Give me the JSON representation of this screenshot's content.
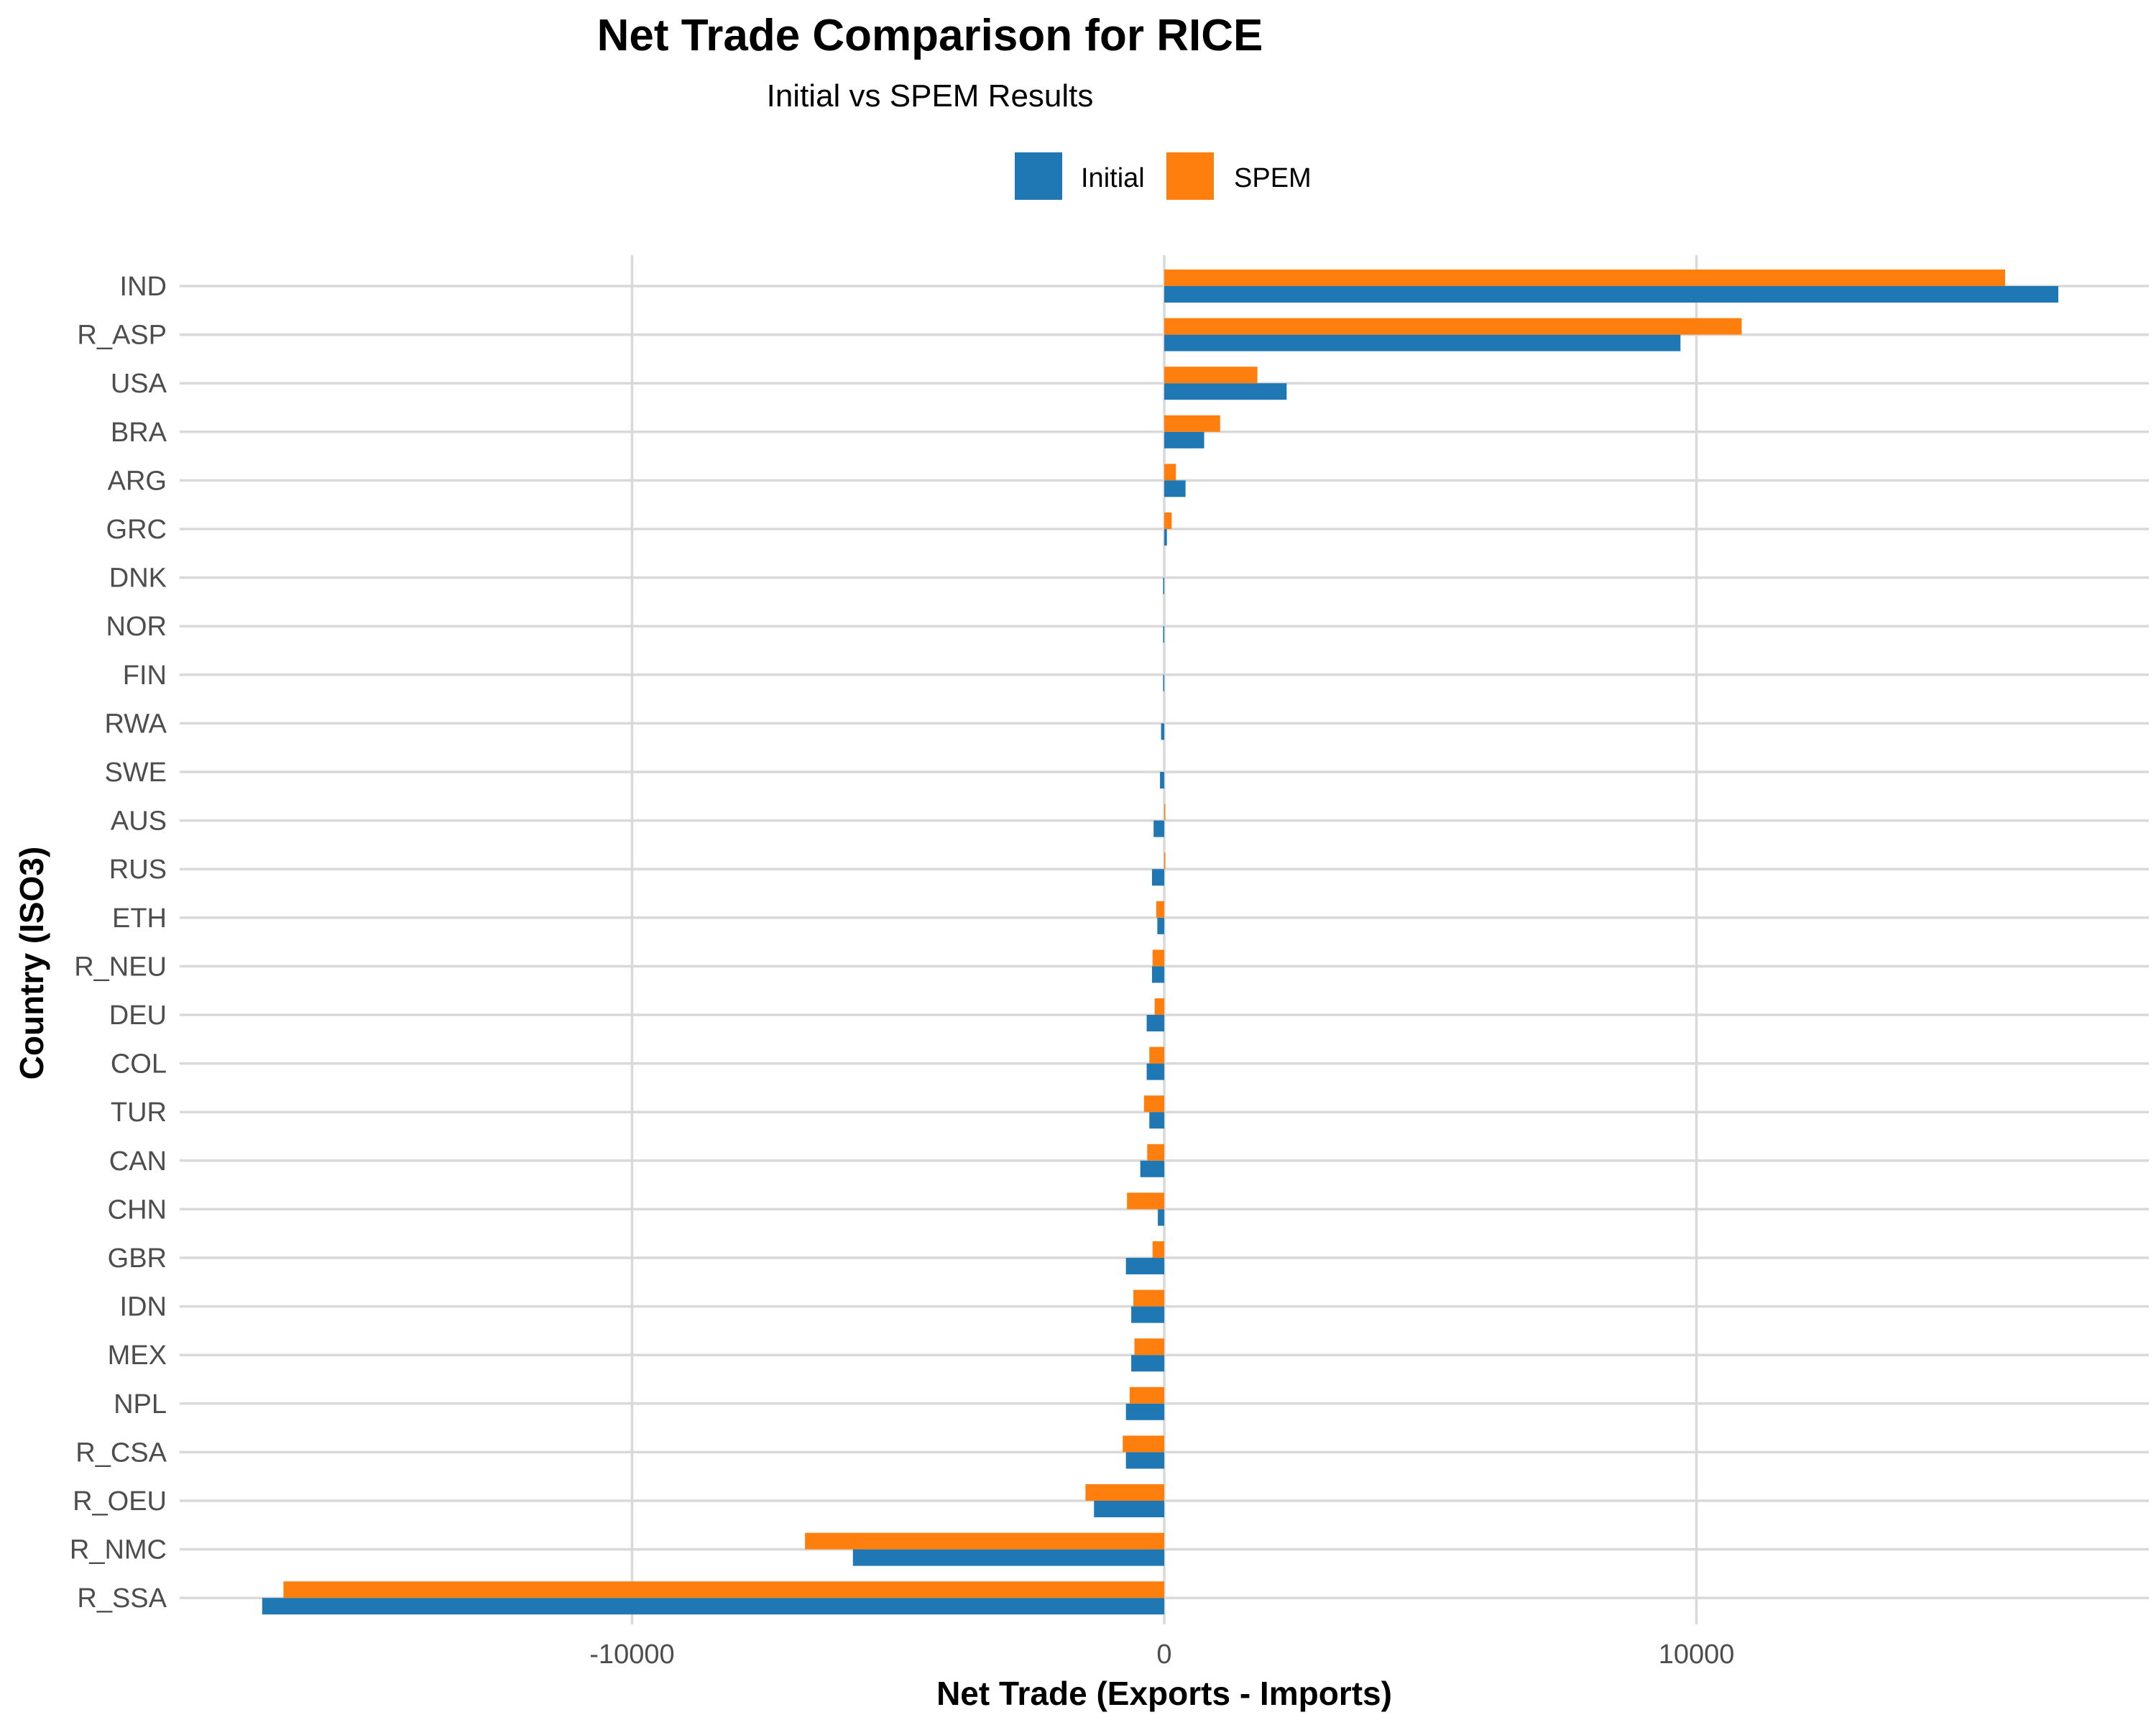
{
  "chart_data": {
    "type": "bar",
    "orientation": "horizontal",
    "title": "Net Trade Comparison for RICE",
    "subtitle": "Initial vs SPEM Results",
    "xlabel": "Net Trade (Exports - Imports)",
    "ylabel": "Country (ISO3)",
    "xlim": [
      -18500,
      18500
    ],
    "xticks": [
      -10000,
      0,
      10000
    ],
    "xtick_labels": [
      "-10000",
      "0",
      "10000"
    ],
    "grid": true,
    "legend_position": "top",
    "categories": [
      "IND",
      "R_ASP",
      "USA",
      "BRA",
      "ARG",
      "GRC",
      "DNK",
      "NOR",
      "FIN",
      "RWA",
      "SWE",
      "AUS",
      "RUS",
      "ETH",
      "R_NEU",
      "DEU",
      "COL",
      "TUR",
      "CAN",
      "CHN",
      "GBR",
      "IDN",
      "MEX",
      "NPL",
      "R_CSA",
      "R_OEU",
      "R_NMC",
      "R_SSA"
    ],
    "series": [
      {
        "name": "Initial",
        "color": "#1f77b4",
        "values": [
          16800,
          9700,
          2300,
          750,
          400,
          50,
          -20,
          -20,
          -20,
          -60,
          -80,
          -200,
          -230,
          -130,
          -230,
          -330,
          -330,
          -280,
          -450,
          -120,
          -720,
          -620,
          -620,
          -720,
          -720,
          -1320,
          -5850,
          -16950
        ]
      },
      {
        "name": "SPEM",
        "color": "#ff7f0e",
        "values": [
          15800,
          10850,
          1750,
          1050,
          220,
          140,
          0,
          0,
          0,
          0,
          0,
          20,
          20,
          -150,
          -220,
          -180,
          -280,
          -380,
          -320,
          -700,
          -220,
          -580,
          -560,
          -650,
          -780,
          -1480,
          -6750,
          -16550
        ]
      }
    ]
  }
}
